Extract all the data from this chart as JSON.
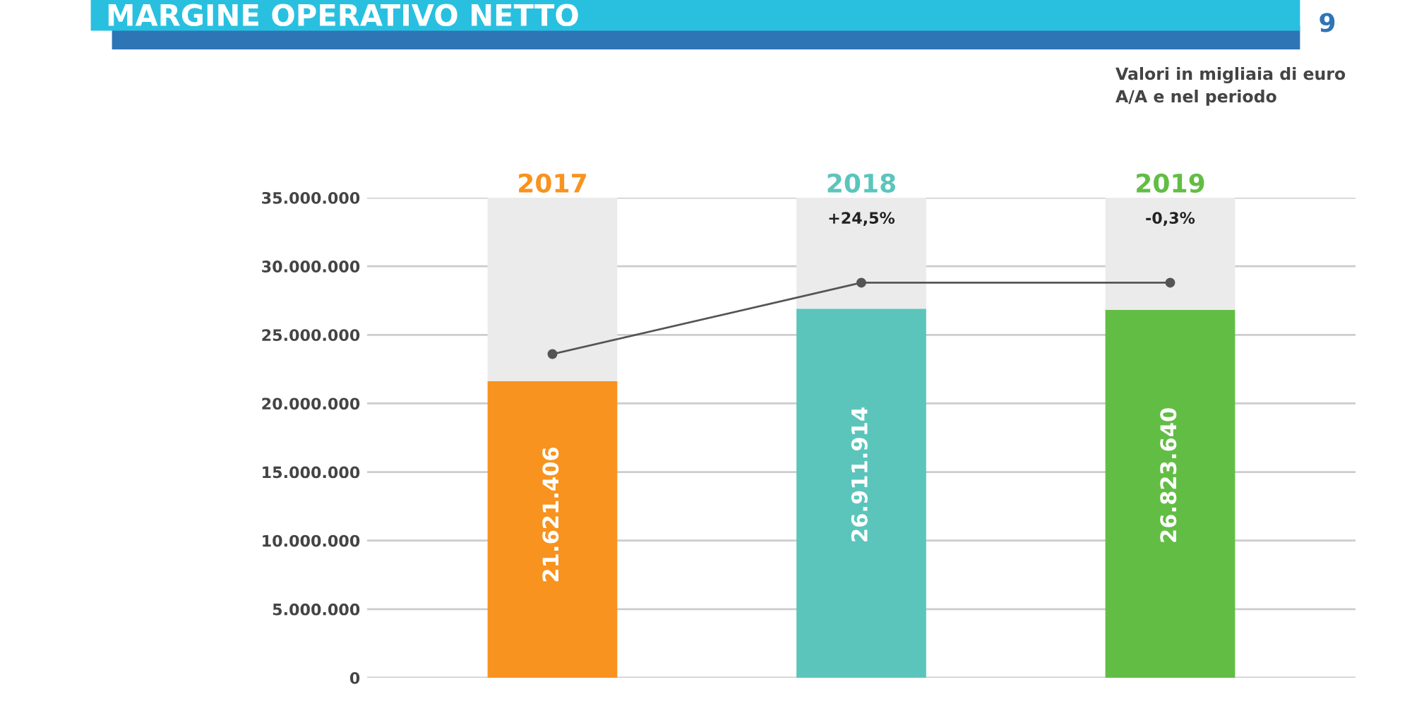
{
  "chart_data": {
    "type": "bar",
    "title": "MARGINE OPERATIVO NETTO",
    "subtitle": "Valori in migliaia di euro\nA/A e nel periodo",
    "categories": [
      "2017",
      "2018",
      "2019"
    ],
    "series": [
      {
        "colors": [
          "#f7931e",
          "#5bc5bc",
          "#62bd45"
        ],
        "values": [
          21621406,
          26911914,
          26823640
        ],
        "value_labels": [
          "21.621.406",
          "26.911.914",
          "26.823.640"
        ]
      },
      {
        "color": "#ebebeb",
        "values": [
          13378594,
          8088086,
          8176360
        ]
      },
      {
        "type": "line",
        "color": "#555555",
        "marker": "circle",
        "values": [
          23600000,
          28800000,
          28800000
        ]
      }
    ],
    "annotations": [
      "+24,5%",
      "-0,3%",
      "9"
    ],
    "stacked": true,
    "ylim": [
      0,
      35000000
    ],
    "yticks": [
      {
        "value": 0,
        "label": "0"
      },
      {
        "value": 5000000,
        "label": "5.000.000"
      },
      {
        "value": 10000000,
        "label": "10.000.000"
      },
      {
        "value": 15000000,
        "label": "15.000.000"
      },
      {
        "value": 20000000,
        "label": "20.000.000"
      },
      {
        "value": 25000000,
        "label": "25.000.000"
      },
      {
        "value": 30000000,
        "label": "30.000.000"
      },
      {
        "value": 35000000,
        "label": "35.000.000"
      }
    ],
    "grid": "y"
  }
}
